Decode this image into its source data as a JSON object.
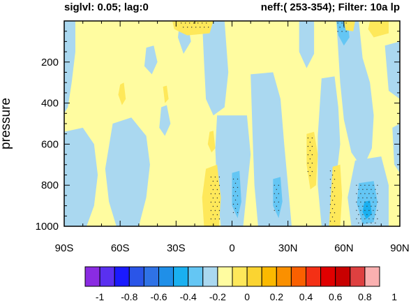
{
  "chart_data": {
    "type": "heatmap",
    "title_left": "siglvl: 0.05; lag:0",
    "title_right": "neff:( 253-354); Filter: 10a lp",
    "ylabel": "pressure",
    "xlabel": "",
    "x_ticks": [
      {
        "value": -90,
        "label": "90S"
      },
      {
        "value": -60,
        "label": "60S"
      },
      {
        "value": -30,
        "label": "30S"
      },
      {
        "value": 0,
        "label": "0"
      },
      {
        "value": 30,
        "label": "30N"
      },
      {
        "value": 60,
        "label": "60N"
      },
      {
        "value": 90,
        "label": "90N"
      }
    ],
    "y_ticks": [
      {
        "value": 200,
        "label": "200"
      },
      {
        "value": 400,
        "label": "400"
      },
      {
        "value": 600,
        "label": "600"
      },
      {
        "value": 800,
        "label": "800"
      },
      {
        "value": 1000,
        "label": "1000"
      }
    ],
    "xlim": [
      -90,
      90
    ],
    "ylim": [
      1000,
      0
    ],
    "y_reversed": true,
    "colorbar": {
      "colors": [
        "#8a2be2",
        "#5a30f0",
        "#1a1aff",
        "#2a55e8",
        "#2f72e6",
        "#1f8fe8",
        "#1ab0f0",
        "#64c6f4",
        "#aad8f0",
        "#fffca0",
        "#fee85a",
        "#fbd431",
        "#fbb900",
        "#fa9000",
        "#fa6000",
        "#f43015",
        "#e00000",
        "#c80000",
        "#de4040",
        "#fab0b0"
      ],
      "tick_labels": [
        "-1",
        "-0.8",
        "-0.6",
        "-0.4",
        "-0.2",
        "0",
        "0.2",
        "0.4",
        "0.6",
        "0.8",
        "1"
      ],
      "range": [
        -1,
        1
      ]
    },
    "background_color": "#fffca0",
    "regions": [
      {
        "color": "#aad8f0",
        "points": [
          [
            -90,
            0
          ],
          [
            -84,
            0
          ],
          [
            -84,
            150
          ],
          [
            -86,
            300
          ],
          [
            -88,
            420
          ],
          [
            -90,
            450
          ]
        ]
      },
      {
        "color": "#aad8f0",
        "points": [
          [
            -90,
            540
          ],
          [
            -80,
            520
          ],
          [
            -74,
            600
          ],
          [
            -72,
            750
          ],
          [
            -74,
            900
          ],
          [
            -78,
            1000
          ],
          [
            -90,
            1000
          ]
        ]
      },
      {
        "color": "#aad8f0",
        "points": [
          [
            -64,
            500
          ],
          [
            -54,
            470
          ],
          [
            -46,
            560
          ],
          [
            -44,
            700
          ],
          [
            -46,
            860
          ],
          [
            -50,
            1000
          ],
          [
            -62,
            1000
          ],
          [
            -66,
            880
          ],
          [
            -68,
            720
          ]
        ]
      },
      {
        "color": "#aad8f0",
        "points": [
          [
            -46,
            130
          ],
          [
            -42,
            120
          ],
          [
            -40,
            200
          ],
          [
            -43,
            260
          ],
          [
            -47,
            220
          ]
        ]
      },
      {
        "color": "#aad8f0",
        "points": [
          [
            -38,
            420
          ],
          [
            -35,
            410
          ],
          [
            -33,
            500
          ],
          [
            -36,
            560
          ],
          [
            -39,
            520
          ]
        ]
      },
      {
        "color": "#aad8f0",
        "points": [
          [
            -28,
            0
          ],
          [
            -24,
            0
          ],
          [
            -22,
            100
          ],
          [
            -26,
            160
          ],
          [
            -29,
            80
          ]
        ]
      },
      {
        "color": "#aad8f0",
        "points": [
          [
            -16,
            0
          ],
          [
            -4,
            0
          ],
          [
            -2,
            250
          ],
          [
            -4,
            420
          ],
          [
            -10,
            460
          ],
          [
            -14,
            380
          ],
          [
            -15,
            200
          ]
        ]
      },
      {
        "color": "#aad8f0",
        "points": [
          [
            -8,
            460
          ],
          [
            8,
            460
          ],
          [
            10,
            650
          ],
          [
            8,
            820
          ],
          [
            6,
            1000
          ],
          [
            -6,
            1000
          ],
          [
            -8,
            820
          ],
          [
            -9,
            620
          ]
        ]
      },
      {
        "color": "#aad8f0",
        "points": [
          [
            10,
            260
          ],
          [
            22,
            250
          ],
          [
            26,
            380
          ],
          [
            28,
            600
          ],
          [
            30,
            800
          ],
          [
            32,
            1000
          ],
          [
            14,
            1000
          ],
          [
            12,
            800
          ],
          [
            11,
            550
          ]
        ]
      },
      {
        "color": "#aad8f0",
        "points": [
          [
            36,
            0
          ],
          [
            44,
            0
          ],
          [
            44,
            160
          ],
          [
            40,
            230
          ],
          [
            36,
            150
          ]
        ]
      },
      {
        "color": "#aad8f0",
        "points": [
          [
            48,
            280
          ],
          [
            55,
            270
          ],
          [
            57,
            420
          ],
          [
            58,
            600
          ],
          [
            56,
            760
          ],
          [
            54,
            900
          ],
          [
            52,
            1000
          ],
          [
            48,
            1000
          ],
          [
            46,
            800
          ],
          [
            46,
            560
          ]
        ]
      },
      {
        "color": "#aad8f0",
        "points": [
          [
            56,
            0
          ],
          [
            68,
            0
          ],
          [
            70,
            180
          ],
          [
            74,
            300
          ],
          [
            76,
            460
          ],
          [
            75,
            620
          ],
          [
            70,
            720
          ],
          [
            64,
            640
          ],
          [
            60,
            480
          ],
          [
            58,
            300
          ]
        ]
      },
      {
        "color": "#aad8f0",
        "points": [
          [
            66,
            680
          ],
          [
            80,
            660
          ],
          [
            84,
            800
          ],
          [
            84,
            1000
          ],
          [
            64,
            1000
          ],
          [
            62,
            860
          ]
        ]
      },
      {
        "color": "#aad8f0",
        "points": [
          [
            82,
            120
          ],
          [
            90,
            100
          ],
          [
            90,
            380
          ],
          [
            84,
            340
          ]
        ]
      },
      {
        "color": "#aad8f0",
        "points": [
          [
            86,
            520
          ],
          [
            90,
            500
          ],
          [
            90,
            740
          ],
          [
            87,
            700
          ]
        ]
      },
      {
        "color": "#64c6f4",
        "points": [
          [
            56,
            0
          ],
          [
            62,
            0
          ],
          [
            63,
            80
          ],
          [
            60,
            120
          ],
          [
            57,
            70
          ]
        ]
      },
      {
        "color": "#64c6f4",
        "points": [
          [
            0,
            740
          ],
          [
            4,
            730
          ],
          [
            5,
            880
          ],
          [
            3,
            960
          ],
          [
            0,
            900
          ]
        ]
      },
      {
        "color": "#64c6f4",
        "points": [
          [
            22,
            770
          ],
          [
            26,
            760
          ],
          [
            27,
            880
          ],
          [
            25,
            960
          ],
          [
            22,
            900
          ]
        ]
      },
      {
        "color": "#64c6f4",
        "points": [
          [
            68,
            790
          ],
          [
            76,
            780
          ],
          [
            78,
            880
          ],
          [
            76,
            980
          ],
          [
            70,
            990
          ],
          [
            67,
            890
          ]
        ]
      },
      {
        "color": "#1ab0f0",
        "points": [
          [
            71,
            880
          ],
          [
            74,
            875
          ],
          [
            75,
            940
          ],
          [
            72,
            965
          ],
          [
            70,
            930
          ]
        ]
      },
      {
        "color": "#fee85a",
        "points": [
          [
            -32,
            0
          ],
          [
            -10,
            0
          ],
          [
            -12,
            60
          ],
          [
            -24,
            70
          ],
          [
            -31,
            40
          ]
        ]
      },
      {
        "color": "#fee85a",
        "points": [
          [
            60,
            0
          ],
          [
            66,
            0
          ],
          [
            65,
            50
          ],
          [
            61,
            45
          ]
        ]
      },
      {
        "color": "#fee85a",
        "points": [
          [
            74,
            0
          ],
          [
            84,
            0
          ],
          [
            84,
            60
          ],
          [
            76,
            80
          ],
          [
            73,
            40
          ]
        ]
      },
      {
        "color": "#fee85a",
        "points": [
          [
            -14,
            720
          ],
          [
            -8,
            700
          ],
          [
            -6,
            860
          ],
          [
            -7,
            1000
          ],
          [
            -15,
            1000
          ],
          [
            -16,
            860
          ]
        ]
      },
      {
        "color": "#fee85a",
        "points": [
          [
            -12,
            540
          ],
          [
            -10,
            535
          ],
          [
            -9,
            620
          ],
          [
            -11,
            640
          ],
          [
            -13,
            600
          ]
        ]
      },
      {
        "color": "#fee85a",
        "points": [
          [
            -60,
            310
          ],
          [
            -58,
            300
          ],
          [
            -57,
            380
          ],
          [
            -59,
            410
          ],
          [
            -61,
            360
          ]
        ]
      },
      {
        "color": "#fee85a",
        "points": [
          [
            -37,
            320
          ],
          [
            -35,
            315
          ],
          [
            -34,
            380
          ],
          [
            -36,
            400
          ]
        ]
      },
      {
        "color": "#fee85a",
        "points": [
          [
            40,
            550
          ],
          [
            44,
            540
          ],
          [
            46,
            650
          ],
          [
            45,
            800
          ],
          [
            42,
            820
          ],
          [
            40,
            700
          ]
        ]
      },
      {
        "color": "#fee85a",
        "points": [
          [
            54,
            710
          ],
          [
            58,
            700
          ],
          [
            59,
            850
          ],
          [
            58,
            1000
          ],
          [
            52,
            1000
          ],
          [
            53,
            850
          ]
        ]
      }
    ],
    "stipple_regions": [
      [
        [
          -28,
          0
        ],
        [
          -12,
          0
        ],
        [
          -14,
          50
        ],
        [
          -26,
          50
        ]
      ],
      [
        [
          -12,
          750
        ],
        [
          -6,
          750
        ],
        [
          -6,
          970
        ],
        [
          -12,
          970
        ]
      ],
      [
        [
          0,
          760
        ],
        [
          4,
          760
        ],
        [
          4,
          950
        ],
        [
          0,
          950
        ]
      ],
      [
        [
          22,
          790
        ],
        [
          26,
          790
        ],
        [
          26,
          930
        ],
        [
          22,
          930
        ]
      ],
      [
        [
          40,
          560
        ],
        [
          44,
          560
        ],
        [
          44,
          760
        ],
        [
          40,
          760
        ]
      ],
      [
        [
          52,
          720
        ],
        [
          56,
          720
        ],
        [
          56,
          990
        ],
        [
          52,
          990
        ]
      ],
      [
        [
          56,
          0
        ],
        [
          62,
          0
        ],
        [
          62,
          70
        ],
        [
          56,
          70
        ]
      ],
      [
        [
          66,
          790
        ],
        [
          78,
          790
        ],
        [
          78,
          990
        ],
        [
          66,
          990
        ]
      ]
    ]
  }
}
